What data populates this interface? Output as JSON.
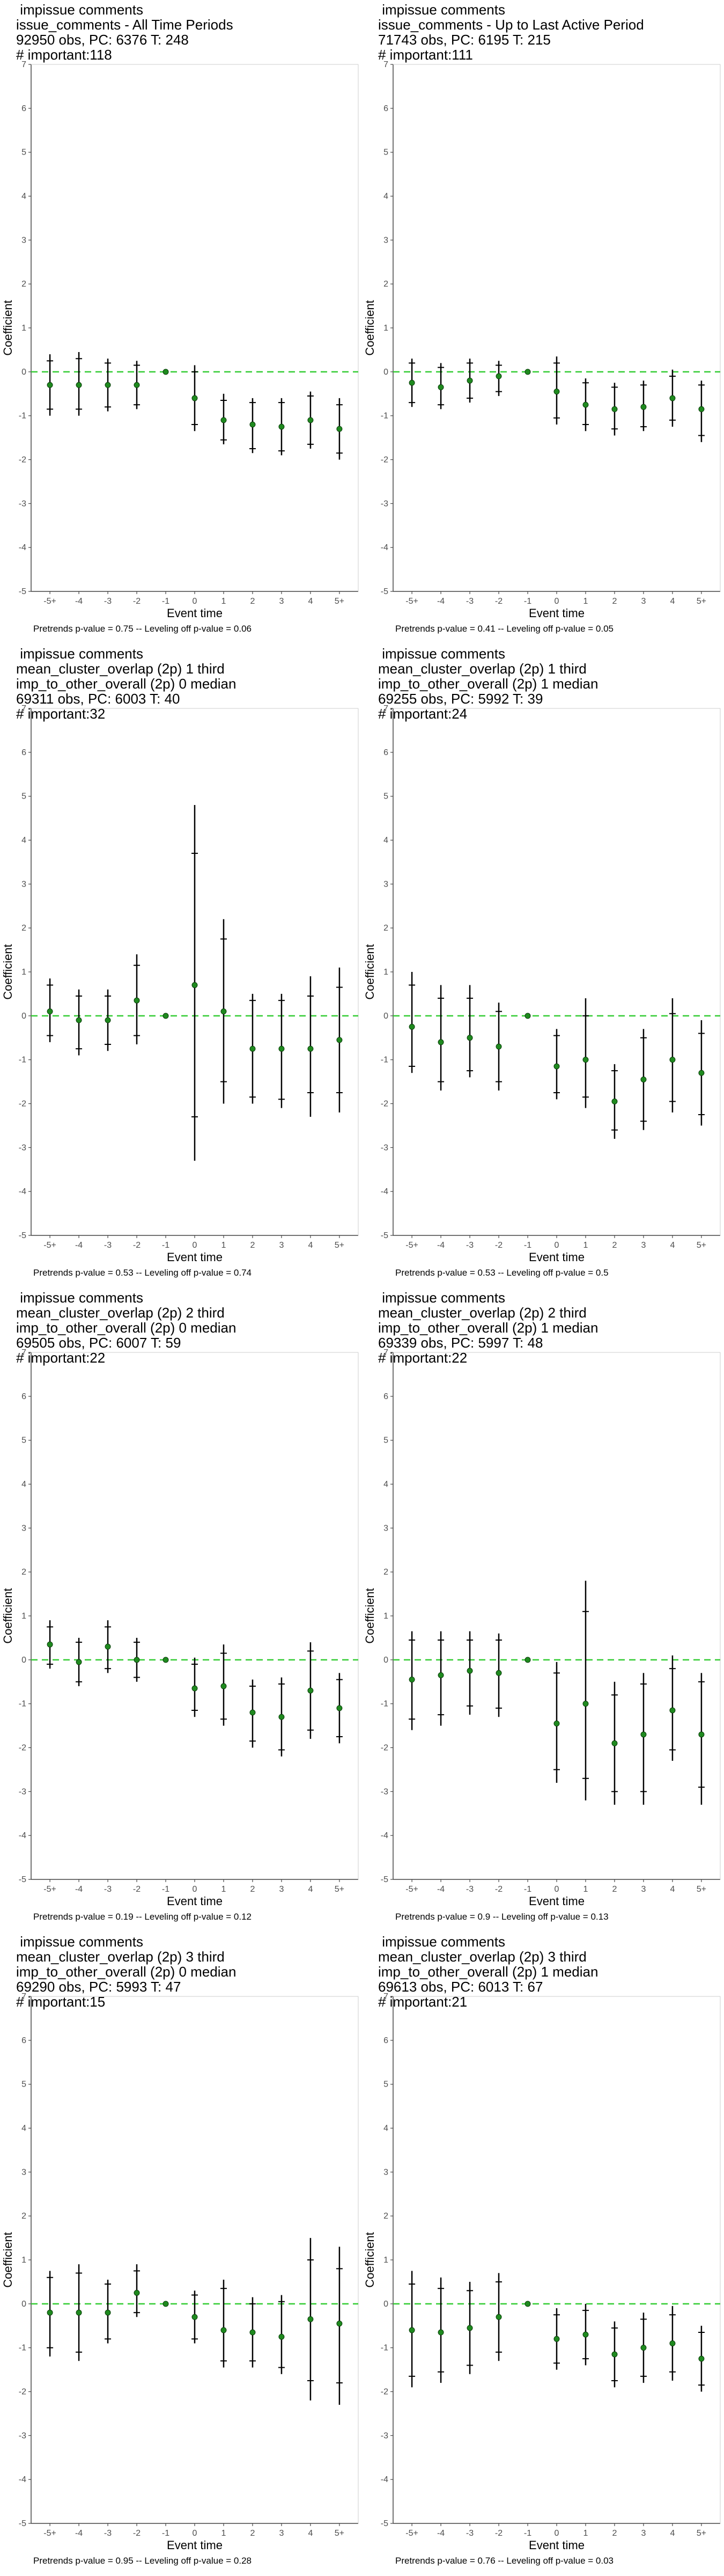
{
  "chart_data": [
    {
      "type": "scatter",
      "title_lines": [
        " impissue comments",
        "issue_comments - All Time Periods",
        "92950 obs, PC: 6376 T: 248",
        "# important:118"
      ],
      "xlabel": "Event time",
      "ylabel": "Coefficient",
      "categories": [
        "-5+",
        "-4",
        "-3",
        "-2",
        "-1",
        "0",
        "1",
        "2",
        "3",
        "4",
        "5+"
      ],
      "ylim": [
        -5,
        7
      ],
      "yticks": [
        -5,
        -4,
        -3,
        -2,
        -1,
        0,
        1,
        2,
        3,
        4,
        5,
        6,
        7
      ],
      "estimates": [
        -0.3,
        -0.3,
        -0.3,
        -0.3,
        0,
        -0.6,
        -1.1,
        -1.2,
        -1.25,
        -1.1,
        -1.3
      ],
      "ci95": [
        [
          -1.0,
          0.4
        ],
        [
          -1.0,
          0.45
        ],
        [
          -0.9,
          0.3
        ],
        [
          -0.85,
          0.25
        ],
        [
          0,
          0
        ],
        [
          -1.35,
          0.15
        ],
        [
          -1.65,
          -0.5
        ],
        [
          -1.85,
          -0.6
        ],
        [
          -1.9,
          -0.6
        ],
        [
          -1.75,
          -0.45
        ],
        [
          -2.0,
          -0.6
        ]
      ],
      "ci90": [
        [
          -0.85,
          0.25
        ],
        [
          -0.85,
          0.3
        ],
        [
          -0.8,
          0.2
        ],
        [
          -0.75,
          0.15
        ],
        [
          0,
          0
        ],
        [
          -1.2,
          0.0
        ],
        [
          -1.55,
          -0.65
        ],
        [
          -1.75,
          -0.7
        ],
        [
          -1.8,
          -0.7
        ],
        [
          -1.65,
          -0.55
        ],
        [
          -1.85,
          -0.75
        ]
      ],
      "reference_line": 0,
      "footnote": "Pretrends p-value = 0.75 -- Leveling off p-value = 0.06"
    },
    {
      "type": "scatter",
      "title_lines": [
        " impissue comments",
        "issue_comments - Up to Last Active Period",
        "71743 obs, PC: 6195 T: 215",
        "# important:111"
      ],
      "xlabel": "Event time",
      "ylabel": "Coefficient",
      "categories": [
        "-5+",
        "-4",
        "-3",
        "-2",
        "-1",
        "0",
        "1",
        "2",
        "3",
        "4",
        "5+"
      ],
      "ylim": [
        -5,
        7
      ],
      "yticks": [
        -5,
        -4,
        -3,
        -2,
        -1,
        0,
        1,
        2,
        3,
        4,
        5,
        6,
        7
      ],
      "estimates": [
        -0.25,
        -0.35,
        -0.2,
        -0.1,
        0,
        -0.45,
        -0.75,
        -0.85,
        -0.8,
        -0.6,
        -0.85
      ],
      "ci95": [
        [
          -0.8,
          0.3
        ],
        [
          -0.85,
          0.2
        ],
        [
          -0.7,
          0.3
        ],
        [
          -0.55,
          0.25
        ],
        [
          0,
          0
        ],
        [
          -1.2,
          0.35
        ],
        [
          -1.35,
          -0.15
        ],
        [
          -1.45,
          -0.25
        ],
        [
          -1.35,
          -0.2
        ],
        [
          -1.25,
          0.05
        ],
        [
          -1.6,
          -0.2
        ]
      ],
      "ci90": [
        [
          -0.7,
          0.2
        ],
        [
          -0.75,
          0.1
        ],
        [
          -0.6,
          0.2
        ],
        [
          -0.45,
          0.15
        ],
        [
          0,
          0
        ],
        [
          -1.05,
          0.2
        ],
        [
          -1.2,
          -0.25
        ],
        [
          -1.3,
          -0.35
        ],
        [
          -1.25,
          -0.3
        ],
        [
          -1.1,
          -0.1
        ],
        [
          -1.45,
          -0.3
        ]
      ],
      "reference_line": 0,
      "footnote": "Pretrends p-value = 0.41 -- Leveling off p-value = 0.05"
    },
    {
      "type": "scatter",
      "title_lines": [
        " impissue comments",
        "mean_cluster_overlap (2p) 1 third",
        "imp_to_other_overall (2p) 0 median",
        "69311 obs, PC: 6003 T: 40",
        "# important:32"
      ],
      "xlabel": "Event time",
      "ylabel": "Coefficient",
      "categories": [
        "-5+",
        "-4",
        "-3",
        "-2",
        "-1",
        "0",
        "1",
        "2",
        "3",
        "4",
        "5+"
      ],
      "ylim": [
        -5,
        7
      ],
      "yticks": [
        -5,
        -4,
        -3,
        -2,
        -1,
        0,
        1,
        2,
        3,
        4,
        5,
        6,
        7
      ],
      "estimates": [
        0.1,
        -0.1,
        -0.1,
        0.35,
        0,
        0.7,
        0.1,
        -0.75,
        -0.75,
        -0.75,
        -0.55
      ],
      "ci95": [
        [
          -0.6,
          0.85
        ],
        [
          -0.9,
          0.6
        ],
        [
          -0.8,
          0.6
        ],
        [
          -0.65,
          1.4
        ],
        [
          0,
          0
        ],
        [
          -3.3,
          4.8
        ],
        [
          -2.0,
          2.2
        ],
        [
          -2.0,
          0.5
        ],
        [
          -2.1,
          0.5
        ],
        [
          -2.3,
          0.9
        ],
        [
          -2.2,
          1.1
        ]
      ],
      "ci90": [
        [
          -0.45,
          0.7
        ],
        [
          -0.75,
          0.45
        ],
        [
          -0.65,
          0.45
        ],
        [
          -0.45,
          1.15
        ],
        [
          0,
          0
        ],
        [
          -2.3,
          3.7
        ],
        [
          -1.5,
          1.75
        ],
        [
          -1.85,
          0.35
        ],
        [
          -1.9,
          0.35
        ],
        [
          -1.75,
          0.45
        ],
        [
          -1.75,
          0.65
        ]
      ],
      "reference_line": 0,
      "footnote": "Pretrends p-value = 0.53 -- Leveling off p-value = 0.74"
    },
    {
      "type": "scatter",
      "title_lines": [
        " impissue comments",
        "mean_cluster_overlap (2p) 1 third",
        "imp_to_other_overall (2p) 1 median",
        "69255 obs, PC: 5992 T: 39",
        "# important:24"
      ],
      "xlabel": "Event time",
      "ylabel": "Coefficient",
      "categories": [
        "-5+",
        "-4",
        "-3",
        "-2",
        "-1",
        "0",
        "1",
        "2",
        "3",
        "4",
        "5+"
      ],
      "ylim": [
        -5,
        7
      ],
      "yticks": [
        -5,
        -4,
        -3,
        -2,
        -1,
        0,
        1,
        2,
        3,
        4,
        5,
        6,
        7
      ],
      "estimates": [
        -0.25,
        -0.6,
        -0.5,
        -0.7,
        0,
        -1.15,
        -1.0,
        -1.95,
        -1.45,
        -1.0,
        -1.3
      ],
      "ci95": [
        [
          -1.3,
          1.0
        ],
        [
          -1.7,
          0.7
        ],
        [
          -1.4,
          0.7
        ],
        [
          -1.7,
          0.3
        ],
        [
          0,
          0
        ],
        [
          -1.9,
          -0.3
        ],
        [
          -2.1,
          0.4
        ],
        [
          -2.8,
          -1.1
        ],
        [
          -2.6,
          -0.3
        ],
        [
          -2.2,
          0.4
        ],
        [
          -2.5,
          -0.1
        ]
      ],
      "ci90": [
        [
          -1.15,
          0.7
        ],
        [
          -1.5,
          0.4
        ],
        [
          -1.25,
          0.4
        ],
        [
          -1.5,
          0.1
        ],
        [
          0,
          0
        ],
        [
          -1.75,
          -0.45
        ],
        [
          -1.85,
          0.0
        ],
        [
          -2.6,
          -1.25
        ],
        [
          -2.4,
          -0.5
        ],
        [
          -1.95,
          0.05
        ],
        [
          -2.25,
          -0.4
        ]
      ],
      "reference_line": 0,
      "footnote": "Pretrends p-value = 0.53 -- Leveling off p-value = 0.5"
    },
    {
      "type": "scatter",
      "title_lines": [
        " impissue comments",
        "mean_cluster_overlap (2p) 2 third",
        "imp_to_other_overall (2p) 0 median",
        "69505 obs, PC: 6007 T: 59",
        "# important:22"
      ],
      "xlabel": "Event time",
      "ylabel": "Coefficient",
      "categories": [
        "-5+",
        "-4",
        "-3",
        "-2",
        "-1",
        "0",
        "1",
        "2",
        "3",
        "4",
        "5+"
      ],
      "ylim": [
        -5,
        7
      ],
      "yticks": [
        -5,
        -4,
        -3,
        -2,
        -1,
        0,
        1,
        2,
        3,
        4,
        5,
        6,
        7
      ],
      "estimates": [
        0.35,
        -0.05,
        0.3,
        0.0,
        0,
        -0.65,
        -0.6,
        -1.2,
        -1.3,
        -0.7,
        -1.1
      ],
      "ci95": [
        [
          -0.2,
          0.9
        ],
        [
          -0.6,
          0.5
        ],
        [
          -0.3,
          0.9
        ],
        [
          -0.5,
          0.5
        ],
        [
          0,
          0
        ],
        [
          -1.3,
          0.05
        ],
        [
          -1.5,
          0.35
        ],
        [
          -2.0,
          -0.45
        ],
        [
          -2.2,
          -0.4
        ],
        [
          -1.8,
          0.4
        ],
        [
          -1.9,
          -0.3
        ]
      ],
      "ci90": [
        [
          -0.1,
          0.75
        ],
        [
          -0.5,
          0.4
        ],
        [
          -0.2,
          0.75
        ],
        [
          -0.4,
          0.4
        ],
        [
          0,
          0
        ],
        [
          -1.15,
          -0.1
        ],
        [
          -1.35,
          0.15
        ],
        [
          -1.85,
          -0.6
        ],
        [
          -2.05,
          -0.55
        ],
        [
          -1.6,
          0.2
        ],
        [
          -1.75,
          -0.45
        ]
      ],
      "reference_line": 0,
      "footnote": "Pretrends p-value = 0.19 -- Leveling off p-value = 0.12"
    },
    {
      "type": "scatter",
      "title_lines": [
        " impissue comments",
        "mean_cluster_overlap (2p) 2 third",
        "imp_to_other_overall (2p) 1 median",
        "69339 obs, PC: 5997 T: 48",
        "# important:22"
      ],
      "xlabel": "Event time",
      "ylabel": "Coefficient",
      "categories": [
        "-5+",
        "-4",
        "-3",
        "-2",
        "-1",
        "0",
        "1",
        "2",
        "3",
        "4",
        "5+"
      ],
      "ylim": [
        -5,
        7
      ],
      "yticks": [
        -5,
        -4,
        -3,
        -2,
        -1,
        0,
        1,
        2,
        3,
        4,
        5,
        6,
        7
      ],
      "estimates": [
        -0.45,
        -0.35,
        -0.25,
        -0.3,
        0,
        -1.45,
        -1.0,
        -1.9,
        -1.7,
        -1.15,
        -1.7
      ],
      "ci95": [
        [
          -1.6,
          0.65
        ],
        [
          -1.5,
          0.65
        ],
        [
          -1.25,
          0.65
        ],
        [
          -1.3,
          0.6
        ],
        [
          0,
          0
        ],
        [
          -2.8,
          -0.05
        ],
        [
          -3.2,
          1.8
        ],
        [
          -3.3,
          -0.5
        ],
        [
          -3.3,
          -0.3
        ],
        [
          -2.3,
          0.1
        ],
        [
          -3.3,
          -0.3
        ]
      ],
      "ci90": [
        [
          -1.35,
          0.45
        ],
        [
          -1.25,
          0.45
        ],
        [
          -1.05,
          0.45
        ],
        [
          -1.1,
          0.45
        ],
        [
          0,
          0
        ],
        [
          -2.5,
          -0.3
        ],
        [
          -2.7,
          1.1
        ],
        [
          -3.0,
          -0.8
        ],
        [
          -3.0,
          -0.55
        ],
        [
          -2.05,
          -0.2
        ],
        [
          -2.9,
          -0.5
        ]
      ],
      "reference_line": 0,
      "footnote": "Pretrends p-value = 0.9 -- Leveling off p-value = 0.13"
    },
    {
      "type": "scatter",
      "title_lines": [
        " impissue comments",
        "mean_cluster_overlap (2p) 3 third",
        "imp_to_other_overall (2p) 0 median",
        "69290 obs, PC: 5993 T: 47",
        "# important:15"
      ],
      "xlabel": "Event time",
      "ylabel": "Coefficient",
      "categories": [
        "-5+",
        "-4",
        "-3",
        "-2",
        "-1",
        "0",
        "1",
        "2",
        "3",
        "4",
        "5+"
      ],
      "ylim": [
        -5,
        7
      ],
      "yticks": [
        -5,
        -4,
        -3,
        -2,
        -1,
        0,
        1,
        2,
        3,
        4,
        5,
        6,
        7
      ],
      "estimates": [
        -0.2,
        -0.2,
        -0.2,
        0.25,
        0,
        -0.3,
        -0.6,
        -0.65,
        -0.75,
        -0.35,
        -0.45
      ],
      "ci95": [
        [
          -1.2,
          0.75
        ],
        [
          -1.3,
          0.9
        ],
        [
          -0.9,
          0.55
        ],
        [
          -0.3,
          0.9
        ],
        [
          0,
          0
        ],
        [
          -0.9,
          0.3
        ],
        [
          -1.45,
          0.55
        ],
        [
          -1.45,
          0.15
        ],
        [
          -1.6,
          0.2
        ],
        [
          -2.2,
          1.5
        ],
        [
          -2.3,
          1.3
        ]
      ],
      "ci90": [
        [
          -1.0,
          0.6
        ],
        [
          -1.1,
          0.7
        ],
        [
          -0.8,
          0.45
        ],
        [
          -0.2,
          0.75
        ],
        [
          0,
          0
        ],
        [
          -0.8,
          0.2
        ],
        [
          -1.3,
          0.35
        ],
        [
          -1.3,
          0.0
        ],
        [
          -1.45,
          0.05
        ],
        [
          -1.75,
          1.0
        ],
        [
          -1.8,
          0.8
        ]
      ],
      "reference_line": 0,
      "footnote": "Pretrends p-value = 0.95 -- Leveling off p-value = 0.28"
    },
    {
      "type": "scatter",
      "title_lines": [
        " impissue comments",
        "mean_cluster_overlap (2p) 3 third",
        "imp_to_other_overall (2p) 1 median",
        "69613 obs, PC: 6013 T: 67",
        "# important:21"
      ],
      "xlabel": "Event time",
      "ylabel": "Coefficient",
      "categories": [
        "-5+",
        "-4",
        "-3",
        "-2",
        "-1",
        "0",
        "1",
        "2",
        "3",
        "4",
        "5+"
      ],
      "ylim": [
        -5,
        7
      ],
      "yticks": [
        -5,
        -4,
        -3,
        -2,
        -1,
        0,
        1,
        2,
        3,
        4,
        5,
        6,
        7
      ],
      "estimates": [
        -0.6,
        -0.65,
        -0.55,
        -0.3,
        0,
        -0.8,
        -0.7,
        -1.15,
        -1.0,
        -0.9,
        -1.25
      ],
      "ci95": [
        [
          -1.9,
          0.75
        ],
        [
          -1.8,
          0.6
        ],
        [
          -1.6,
          0.5
        ],
        [
          -1.3,
          0.7
        ],
        [
          0,
          0
        ],
        [
          -1.5,
          -0.1
        ],
        [
          -1.4,
          0.0
        ],
        [
          -1.9,
          -0.4
        ],
        [
          -1.8,
          -0.2
        ],
        [
          -1.75,
          -0.05
        ],
        [
          -2.0,
          -0.5
        ]
      ],
      "ci90": [
        [
          -1.65,
          0.45
        ],
        [
          -1.55,
          0.35
        ],
        [
          -1.4,
          0.3
        ],
        [
          -1.1,
          0.5
        ],
        [
          0,
          0
        ],
        [
          -1.35,
          -0.25
        ],
        [
          -1.25,
          -0.15
        ],
        [
          -1.75,
          -0.55
        ],
        [
          -1.65,
          -0.35
        ],
        [
          -1.55,
          -0.25
        ],
        [
          -1.85,
          -0.65
        ]
      ],
      "reference_line": 0,
      "footnote": "Pretrends p-value = 0.76 -- Leveling off p-value = 0.03"
    }
  ],
  "colors": {
    "point": "#1f8a1f",
    "reference_line": "#33cc33",
    "bar": "#000000",
    "axis": "#333333"
  }
}
